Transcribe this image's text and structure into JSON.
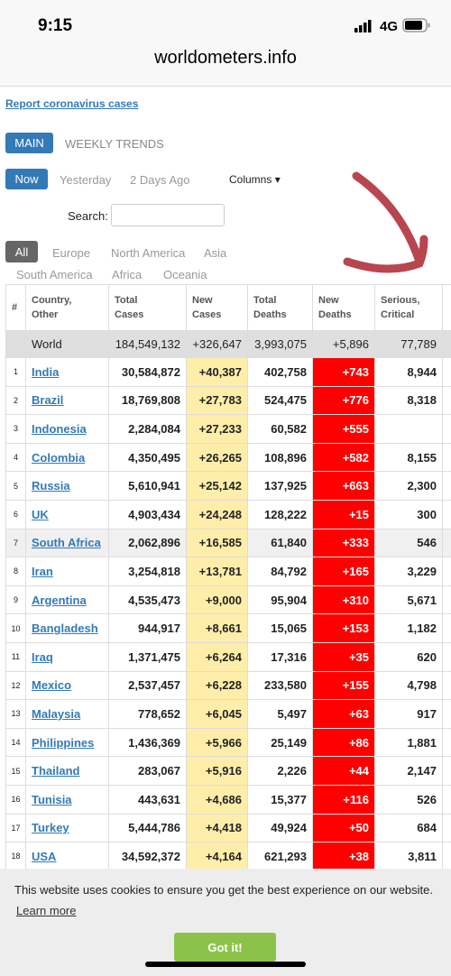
{
  "status_bar": {
    "time": "9:15",
    "network": "4G"
  },
  "url": "worldometers.info",
  "report_link": "Report coronavirus cases",
  "tabs": [
    "MAIN",
    "WEEKLY TRENDS"
  ],
  "day_tabs": [
    "Now",
    "Yesterday",
    "2 Days Ago"
  ],
  "columns_button": "Columns",
  "search_label": "Search:",
  "regions": [
    "All",
    "Europe",
    "North America",
    "Asia",
    "South America",
    "Africa",
    "Oceania"
  ],
  "table": {
    "headers": [
      "#",
      "Country, Other",
      "Total Cases",
      "New Cases",
      "Total Deaths",
      "New Deaths",
      "Serious, Critical"
    ],
    "world": [
      "World",
      "184,549,132",
      "+326,647",
      "3,993,075",
      "+5,896",
      "77,789"
    ],
    "rows": [
      [
        "1",
        "India",
        "30,584,872",
        "+40,387",
        "402,758",
        "+743",
        "8,944"
      ],
      [
        "2",
        "Brazil",
        "18,769,808",
        "+27,783",
        "524,475",
        "+776",
        "8,318"
      ],
      [
        "3",
        "Indonesia",
        "2,284,084",
        "+27,233",
        "60,582",
        "+555",
        null
      ],
      [
        "4",
        "Colombia",
        "4,350,495",
        "+26,265",
        "108,896",
        "+582",
        "8,155"
      ],
      [
        "5",
        "Russia",
        "5,610,941",
        "+25,142",
        "137,925",
        "+663",
        "2,300"
      ],
      [
        "6",
        "UK",
        "4,903,434",
        "+24,248",
        "128,222",
        "+15",
        "300"
      ],
      [
        "7",
        "South Africa",
        "2,062,896",
        "+16,585",
        "61,840",
        "+333",
        "546"
      ],
      [
        "8",
        "Iran",
        "3,254,818",
        "+13,781",
        "84,792",
        "+165",
        "3,229"
      ],
      [
        "9",
        "Argentina",
        "4,535,473",
        "+9,000",
        "95,904",
        "+310",
        "5,671"
      ],
      [
        "10",
        "Bangladesh",
        "944,917",
        "+8,661",
        "15,065",
        "+153",
        "1,182"
      ],
      [
        "11",
        "Iraq",
        "1,371,475",
        "+6,264",
        "17,316",
        "+35",
        "620"
      ],
      [
        "12",
        "Mexico",
        "2,537,457",
        "+6,228",
        "233,580",
        "+155",
        "4,798"
      ],
      [
        "13",
        "Malaysia",
        "778,652",
        "+6,045",
        "5,497",
        "+63",
        "917"
      ],
      [
        "14",
        "Philippines",
        "1,436,369",
        "+5,966",
        "25,149",
        "+86",
        "1,881"
      ],
      [
        "15",
        "Thailand",
        "283,067",
        "+5,916",
        "2,226",
        "+44",
        "2,147"
      ],
      [
        "16",
        "Tunisia",
        "443,631",
        "+4,686",
        "15,377",
        "+116",
        "526"
      ],
      [
        "17",
        "Turkey",
        "5,444,786",
        "+4,418",
        "49,924",
        "+50",
        "684"
      ],
      [
        "18",
        "USA",
        "34,592,372",
        "+4,164",
        "621,293",
        "+38",
        "3,811"
      ]
    ]
  },
  "cookie": {
    "text": "This website uses cookies to ensure you get the best experience on our website.",
    "learn_more": "Learn more",
    "button": "Got it!"
  }
}
